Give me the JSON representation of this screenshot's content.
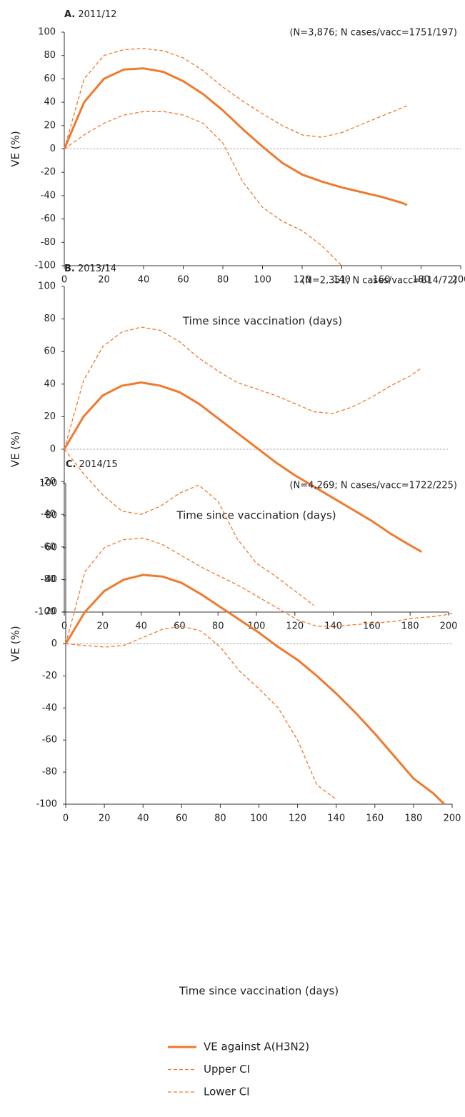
{
  "chart_data": [
    {
      "type": "line",
      "label": "A.",
      "title": "2011/12",
      "annotation": "(N=3,876; N cases/vacc=1751/197)",
      "ylabel": "VE (%)",
      "xlabel": "Time since vaccination (days)",
      "x": [
        0,
        10,
        20,
        30,
        40,
        50,
        60,
        70,
        80,
        90,
        100,
        110,
        120,
        130,
        140,
        150,
        160,
        170,
        173
      ],
      "series": [
        {
          "color": "#ef7a2e",
          "style": "solid",
          "values": [
            0,
            40,
            60,
            68,
            69,
            66,
            58,
            47,
            33,
            17,
            2,
            -12,
            -22,
            -28,
            -33,
            -37,
            -41,
            -46,
            -48
          ]
        },
        {
          "color": "#ef7a2e",
          "style": "dashed",
          "values": [
            0,
            60,
            80,
            85,
            86,
            84,
            78,
            67,
            53,
            41,
            30,
            20,
            12,
            10,
            14,
            21,
            28,
            35,
            37
          ]
        },
        {
          "color": "#ef7a2e",
          "style": "dashed",
          "values": [
            0,
            12,
            22,
            29,
            32,
            32,
            29,
            22,
            5,
            -28,
            -50,
            -62,
            -70,
            -83,
            -100,
            null,
            null,
            null,
            null
          ]
        }
      ],
      "xlim": [
        0,
        200
      ],
      "ylim": [
        -100,
        100
      ],
      "xticks": [
        0,
        20,
        40,
        60,
        80,
        100,
        120,
        140,
        160,
        180,
        200
      ],
      "yticks": [
        -100,
        -80,
        -60,
        -40,
        -20,
        0,
        20,
        40,
        60,
        80,
        100
      ]
    },
    {
      "type": "line",
      "label": "B.",
      "title": "2013/14",
      "annotation": "(N=2,351; N cases/vacc=614/72)",
      "ylabel": "VE (%)",
      "xlabel": "Time since vaccination (days)",
      "x": [
        0,
        10,
        20,
        30,
        40,
        50,
        60,
        70,
        80,
        90,
        100,
        110,
        120,
        130,
        140,
        150,
        160,
        170,
        180,
        186
      ],
      "series": [
        {
          "color": "#ef7a2e",
          "style": "solid",
          "values": [
            0,
            20,
            33,
            39,
            41,
            39,
            35,
            28,
            19,
            10,
            1,
            -8,
            -16,
            -23,
            -30,
            -37,
            -44,
            -52,
            -59,
            -63
          ]
        },
        {
          "color": "#ef7a2e",
          "style": "dashed",
          "values": [
            0,
            42,
            63,
            72,
            75,
            73,
            66,
            56,
            48,
            41,
            37,
            33,
            28,
            23,
            22,
            26,
            32,
            39,
            45,
            50
          ]
        },
        {
          "color": "#ef7a2e",
          "style": "dashed",
          "values": [
            0,
            -15,
            -28,
            -38,
            -40,
            -35,
            -27,
            -22,
            -32,
            -55,
            -70,
            -78,
            -87,
            -96,
            null,
            null,
            null,
            null,
            null,
            null
          ]
        }
      ],
      "xlim": [
        0,
        200
      ],
      "ylim": [
        -100,
        100
      ],
      "xticks": [
        0,
        20,
        40,
        60,
        80,
        100,
        120,
        140,
        160,
        180,
        200
      ],
      "yticks": [
        -100,
        -80,
        -60,
        -40,
        -20,
        0,
        20,
        40,
        60,
        80,
        100
      ]
    },
    {
      "type": "line",
      "label": "C.",
      "title": "2014/15",
      "annotation": "(N=4,269; N cases/vacc=1722/225)",
      "ylabel": "VE (%)",
      "xlabel": "Time since vaccination (days)",
      "x": [
        0,
        10,
        20,
        30,
        40,
        50,
        60,
        70,
        80,
        90,
        100,
        110,
        120,
        130,
        140,
        150,
        160,
        170,
        180,
        190,
        196,
        200
      ],
      "series": [
        {
          "color": "#ef7a2e",
          "style": "solid",
          "values": [
            0,
            20,
            33,
            40,
            43,
            42,
            38,
            31,
            23,
            15,
            7,
            -2,
            -10,
            -20,
            -31,
            -43,
            -56,
            -70,
            -84,
            -93,
            -100,
            null
          ]
        },
        {
          "color": "#ef7a2e",
          "style": "dashed",
          "values": [
            0,
            45,
            60,
            65,
            66,
            62,
            55,
            48,
            42,
            36,
            29,
            22,
            15,
            11,
            11,
            12,
            13,
            14,
            16,
            17,
            18,
            19
          ]
        },
        {
          "color": "#ef7a2e",
          "style": "dashed",
          "values": [
            0,
            -1,
            -2,
            -1,
            4,
            9,
            11,
            8,
            -2,
            -17,
            -28,
            -40,
            -60,
            -88,
            -97,
            null,
            null,
            null,
            null,
            null,
            null,
            null
          ]
        }
      ],
      "xlim": [
        0,
        200
      ],
      "ylim": [
        -100,
        100
      ],
      "xticks": [
        0,
        20,
        40,
        60,
        80,
        100,
        120,
        140,
        160,
        180,
        200
      ],
      "yticks": [
        -100,
        -80,
        -60,
        -40,
        -20,
        0,
        20,
        40,
        60,
        80,
        100
      ]
    }
  ],
  "legend": [
    "VE against A(H3N2)",
    "Upper CI",
    "Lower CI"
  ]
}
